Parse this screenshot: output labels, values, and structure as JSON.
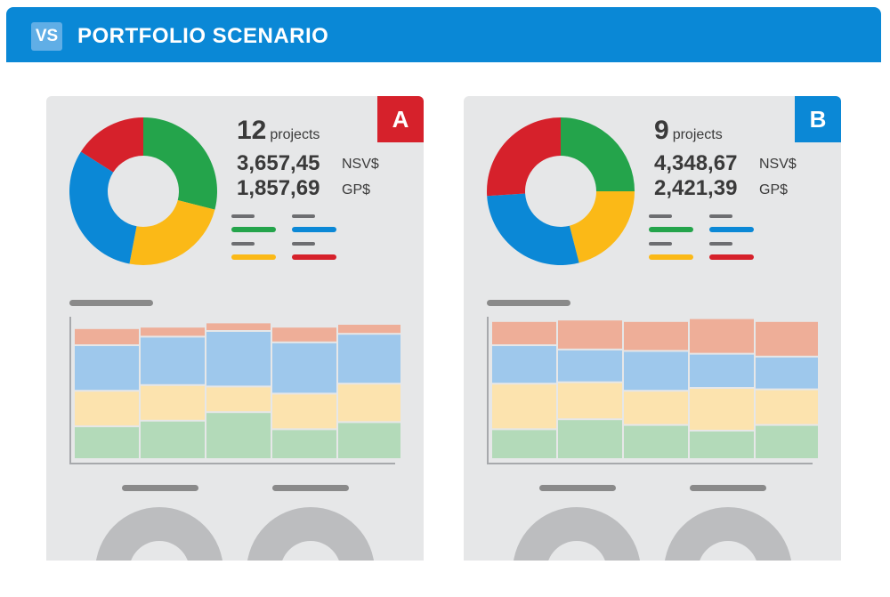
{
  "header": {
    "badge": "VS",
    "title": "PORTFOLIO SCENARIO"
  },
  "colors": {
    "header_bg": "#0a88d6",
    "green": "#24a44b",
    "yellow": "#fbb917",
    "blue": "#0b88d6",
    "red": "#d6212b",
    "stack_salmon": "#eeae98",
    "stack_blue": "#9ec8ec",
    "stack_yellow": "#fce3ae",
    "stack_green": "#b3dab9"
  },
  "panels": [
    {
      "label": "A",
      "label_color": "#d6212b",
      "projects_count": "12",
      "projects_unit": "projects",
      "nsv_value": "3,657,45",
      "nsv_label": "NSV$",
      "gp_value": "1,857,69",
      "gp_label": "GP$",
      "legend_icons": [
        "green-line-icon",
        "blue-line-icon",
        "yellow-line-icon",
        "red-line-icon"
      ],
      "chart_data": [
        {
          "type": "pie",
          "donut": true,
          "slices": [
            {
              "color": "#24a44b",
              "value": 29
            },
            {
              "color": "#fbb917",
              "value": 24
            },
            {
              "color": "#0b88d6",
              "value": 31
            },
            {
              "color": "#d6212b",
              "value": 16
            }
          ]
        },
        {
          "type": "bar",
          "stacked": true,
          "categories": [
            "",
            "",
            "",
            "",
            ""
          ],
          "series": [
            {
              "color": "#b3dab9",
              "values": [
                23,
                27,
                33,
                21,
                26
              ]
            },
            {
              "color": "#fce3ae",
              "values": [
                25,
                25,
                18,
                25,
                27
              ]
            },
            {
              "color": "#9ec8ec",
              "values": [
                32,
                34,
                39,
                36,
                35
              ]
            },
            {
              "color": "#eeae98",
              "values": [
                12,
                7,
                6,
                11,
                7
              ]
            }
          ]
        }
      ]
    },
    {
      "label": "B",
      "label_color": "#0b88d6",
      "projects_count": "9",
      "projects_unit": "projects",
      "nsv_value": "4,348,67",
      "nsv_label": "NSV$",
      "gp_value": "2,421,39",
      "gp_label": "GP$",
      "legend_icons": [
        "green-line-icon",
        "blue-line-icon",
        "yellow-line-icon",
        "red-line-icon"
      ],
      "chart_data": [
        {
          "type": "pie",
          "donut": true,
          "slices": [
            {
              "color": "#24a44b",
              "value": 25
            },
            {
              "color": "#fbb917",
              "value": 21
            },
            {
              "color": "#0b88d6",
              "value": 28
            },
            {
              "color": "#d6212b",
              "value": 26
            }
          ]
        },
        {
          "type": "bar",
          "stacked": true,
          "categories": [
            "",
            "",
            "",
            "",
            ""
          ],
          "series": [
            {
              "color": "#b3dab9",
              "values": [
                21,
                28,
                24,
                20,
                24
              ]
            },
            {
              "color": "#fce3ae",
              "values": [
                32,
                26,
                24,
                30,
                25
              ]
            },
            {
              "color": "#9ec8ec",
              "values": [
                27,
                23,
                28,
                24,
                23
              ]
            },
            {
              "color": "#eeae98",
              "values": [
                17,
                21,
                21,
                25,
                25
              ]
            }
          ]
        }
      ]
    }
  ]
}
